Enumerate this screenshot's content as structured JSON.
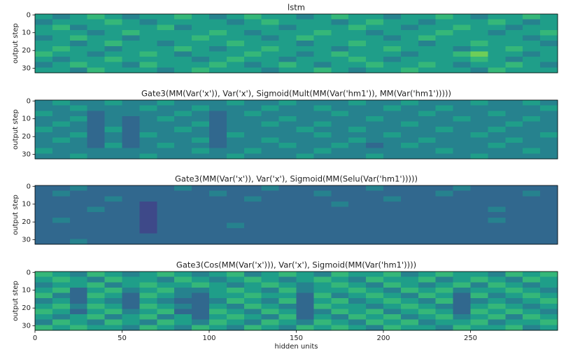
{
  "chart_data": [
    {
      "type": "heatmap",
      "title": "lstm",
      "ylabel": "output step",
      "colormap": "viridis",
      "clim": [
        0,
        9
      ],
      "xlim": [
        0,
        300
      ],
      "ylim": [
        32.5,
        -0.5
      ],
      "yticks": [
        0,
        10,
        20,
        30
      ],
      "values": [
        [
          5,
          4,
          5,
          6,
          5,
          4,
          5,
          5,
          6,
          5,
          4,
          5,
          6,
          5,
          5,
          4,
          5,
          6,
          5,
          5,
          4,
          5,
          5,
          6,
          5,
          4,
          5,
          5,
          6,
          5
        ],
        [
          4,
          5,
          5,
          5,
          6,
          5,
          4,
          5,
          5,
          5,
          5,
          4,
          5,
          6,
          5,
          5,
          5,
          4,
          5,
          6,
          5,
          5,
          4,
          5,
          5,
          5,
          6,
          5,
          4,
          5
        ],
        [
          5,
          6,
          4,
          5,
          5,
          5,
          5,
          6,
          4,
          5,
          5,
          5,
          5,
          5,
          4,
          5,
          5,
          5,
          6,
          5,
          5,
          4,
          5,
          5,
          6,
          5,
          5,
          4,
          5,
          5
        ],
        [
          5,
          5,
          5,
          4,
          5,
          6,
          5,
          5,
          5,
          5,
          6,
          5,
          4,
          5,
          5,
          5,
          6,
          5,
          5,
          4,
          5,
          5,
          5,
          6,
          5,
          5,
          4,
          5,
          5,
          6
        ],
        [
          4,
          5,
          6,
          5,
          5,
          4,
          5,
          5,
          5,
          6,
          5,
          5,
          5,
          4,
          5,
          6,
          5,
          5,
          5,
          5,
          4,
          5,
          6,
          5,
          5,
          5,
          5,
          5,
          4,
          5
        ],
        [
          5,
          5,
          4,
          5,
          6,
          5,
          5,
          4,
          5,
          5,
          5,
          6,
          5,
          5,
          5,
          4,
          5,
          5,
          6,
          5,
          5,
          5,
          4,
          5,
          5,
          6,
          5,
          5,
          5,
          4
        ],
        [
          5,
          6,
          5,
          5,
          4,
          5,
          5,
          5,
          6,
          5,
          4,
          5,
          5,
          6,
          5,
          5,
          5,
          4,
          5,
          5,
          6,
          5,
          5,
          5,
          4,
          5,
          5,
          6,
          5,
          5
        ],
        [
          6,
          5,
          5,
          4,
          5,
          5,
          6,
          5,
          4,
          5,
          5,
          5,
          6,
          5,
          5,
          4,
          5,
          6,
          5,
          5,
          5,
          4,
          5,
          5,
          6,
          7,
          5,
          5,
          4,
          5
        ],
        [
          5,
          4,
          5,
          5,
          6,
          5,
          5,
          5,
          5,
          4,
          5,
          6,
          5,
          5,
          4,
          5,
          5,
          5,
          6,
          5,
          4,
          5,
          5,
          5,
          5,
          6,
          5,
          4,
          5,
          5
        ],
        [
          4,
          5,
          6,
          5,
          5,
          4,
          6,
          5,
          5,
          5,
          6,
          5,
          4,
          5,
          6,
          5,
          4,
          5,
          5,
          6,
          5,
          5,
          6,
          5,
          4,
          5,
          5,
          6,
          5,
          4
        ],
        [
          5,
          5,
          4,
          6,
          5,
          5,
          5,
          4,
          5,
          6,
          5,
          5,
          5,
          4,
          5,
          5,
          6,
          5,
          4,
          5,
          5,
          6,
          5,
          5,
          5,
          4,
          6,
          5,
          5,
          5
        ]
      ]
    },
    {
      "type": "heatmap",
      "title": "Gate3(MM(Var('x')), Var('x'), Sigmoid(Mult(MM(Var('hm1')), MM(Var('hm1')))))",
      "ylabel": "output step",
      "colormap": "viridis",
      "clim": [
        0,
        9
      ],
      "xlim": [
        0,
        300
      ],
      "ylim": [
        32.5,
        -0.5
      ],
      "yticks": [
        0,
        10,
        20,
        30
      ],
      "values": [
        [
          4,
          5,
          4,
          4,
          5,
          4,
          4,
          5,
          4,
          4,
          4,
          5,
          4,
          4,
          5,
          4,
          4,
          4,
          5,
          4,
          4,
          5,
          4,
          4,
          4,
          5,
          4,
          4,
          5,
          4
        ],
        [
          4,
          4,
          5,
          4,
          4,
          4,
          5,
          4,
          4,
          5,
          4,
          4,
          4,
          5,
          4,
          4,
          5,
          4,
          4,
          4,
          5,
          4,
          4,
          5,
          4,
          4,
          4,
          4,
          4,
          5
        ],
        [
          5,
          4,
          4,
          3,
          4,
          4,
          4,
          4,
          5,
          4,
          3,
          4,
          5,
          4,
          4,
          4,
          4,
          5,
          4,
          4,
          4,
          4,
          5,
          4,
          4,
          4,
          5,
          4,
          4,
          4
        ],
        [
          4,
          4,
          5,
          3,
          4,
          3,
          4,
          5,
          4,
          4,
          3,
          4,
          4,
          4,
          5,
          4,
          4,
          4,
          4,
          5,
          4,
          4,
          4,
          4,
          5,
          4,
          4,
          4,
          5,
          4
        ],
        [
          4,
          5,
          4,
          3,
          4,
          3,
          4,
          4,
          4,
          5,
          3,
          4,
          4,
          5,
          4,
          4,
          5,
          4,
          4,
          4,
          4,
          5,
          4,
          4,
          4,
          4,
          4,
          5,
          4,
          4
        ],
        [
          5,
          4,
          4,
          3,
          5,
          3,
          4,
          4,
          5,
          4,
          3,
          4,
          4,
          4,
          4,
          5,
          4,
          4,
          5,
          4,
          4,
          4,
          4,
          5,
          4,
          4,
          5,
          4,
          4,
          4
        ],
        [
          4,
          4,
          5,
          3,
          4,
          3,
          5,
          4,
          4,
          4,
          3,
          5,
          4,
          4,
          4,
          4,
          5,
          4,
          4,
          4,
          5,
          4,
          4,
          4,
          4,
          5,
          4,
          4,
          4,
          5
        ],
        [
          4,
          5,
          4,
          3,
          4,
          3,
          4,
          4,
          4,
          5,
          3,
          4,
          4,
          5,
          4,
          4,
          4,
          4,
          5,
          4,
          4,
          4,
          5,
          4,
          4,
          4,
          4,
          5,
          4,
          4
        ],
        [
          4,
          4,
          4,
          3,
          5,
          3,
          4,
          5,
          4,
          4,
          3,
          4,
          4,
          4,
          5,
          4,
          4,
          5,
          4,
          3,
          4,
          5,
          4,
          4,
          4,
          4,
          5,
          4,
          4,
          4
        ],
        [
          5,
          4,
          4,
          4,
          4,
          4,
          4,
          4,
          4,
          5,
          4,
          4,
          5,
          4,
          4,
          4,
          5,
          4,
          4,
          4,
          4,
          4,
          4,
          5,
          4,
          4,
          4,
          4,
          5,
          4
        ],
        [
          4,
          4,
          5,
          4,
          4,
          4,
          5,
          4,
          4,
          4,
          4,
          5,
          4,
          4,
          4,
          5,
          4,
          4,
          4,
          5,
          4,
          4,
          4,
          4,
          4,
          5,
          4,
          4,
          4,
          4
        ]
      ]
    },
    {
      "type": "heatmap",
      "title": "Gate3(MM(Var('x')), Var('x'), Sigmoid(MM(Selu(Var('hm1')))))",
      "ylabel": "output step",
      "colormap": "viridis",
      "clim": [
        0,
        9
      ],
      "xlim": [
        0,
        300
      ],
      "ylim": [
        32.5,
        -0.5
      ],
      "yticks": [
        0,
        10,
        20,
        30
      ],
      "values": [
        [
          3,
          3,
          4,
          3,
          3,
          3,
          3,
          3,
          4,
          3,
          3,
          3,
          3,
          4,
          3,
          3,
          3,
          3,
          3,
          4,
          3,
          3,
          3,
          3,
          4,
          3,
          3,
          3,
          3,
          3
        ],
        [
          3,
          4,
          3,
          3,
          3,
          3,
          3,
          3,
          3,
          3,
          4,
          3,
          3,
          3,
          3,
          3,
          4,
          3,
          3,
          3,
          3,
          3,
          3,
          4,
          3,
          3,
          3,
          3,
          4,
          3
        ],
        [
          3,
          3,
          3,
          3,
          4,
          3,
          3,
          3,
          3,
          3,
          3,
          3,
          4,
          3,
          3,
          3,
          3,
          3,
          3,
          3,
          4,
          3,
          3,
          3,
          3,
          3,
          3,
          3,
          3,
          3
        ],
        [
          3,
          3,
          3,
          3,
          3,
          3,
          2,
          3,
          3,
          3,
          3,
          3,
          3,
          3,
          3,
          3,
          3,
          4,
          3,
          3,
          3,
          3,
          3,
          3,
          3,
          3,
          3,
          3,
          3,
          3
        ],
        [
          3,
          3,
          3,
          4,
          3,
          3,
          2,
          3,
          3,
          3,
          3,
          3,
          3,
          3,
          3,
          3,
          3,
          3,
          3,
          3,
          3,
          3,
          3,
          3,
          3,
          3,
          4,
          3,
          3,
          3
        ],
        [
          3,
          3,
          3,
          3,
          3,
          3,
          2,
          3,
          3,
          3,
          3,
          3,
          3,
          3,
          3,
          3,
          3,
          3,
          3,
          3,
          3,
          3,
          3,
          3,
          3,
          3,
          3,
          3,
          3,
          3
        ],
        [
          3,
          4,
          3,
          3,
          3,
          3,
          2,
          3,
          3,
          3,
          3,
          3,
          3,
          3,
          3,
          3,
          3,
          3,
          3,
          3,
          3,
          3,
          3,
          3,
          3,
          3,
          4,
          3,
          3,
          3
        ],
        [
          3,
          3,
          3,
          3,
          3,
          3,
          2,
          3,
          3,
          3,
          3,
          4,
          3,
          3,
          3,
          3,
          3,
          3,
          3,
          3,
          3,
          3,
          3,
          3,
          3,
          3,
          3,
          3,
          3,
          3
        ],
        [
          3,
          3,
          3,
          3,
          3,
          3,
          2,
          3,
          3,
          3,
          3,
          3,
          3,
          3,
          3,
          3,
          3,
          3,
          3,
          3,
          3,
          3,
          3,
          3,
          3,
          3,
          3,
          3,
          3,
          3
        ],
        [
          3,
          3,
          3,
          3,
          3,
          3,
          3,
          3,
          3,
          3,
          3,
          3,
          3,
          3,
          3,
          3,
          3,
          3,
          3,
          3,
          3,
          3,
          3,
          3,
          3,
          3,
          3,
          3,
          3,
          3
        ],
        [
          3,
          3,
          4,
          3,
          3,
          3,
          3,
          3,
          3,
          3,
          3,
          3,
          3,
          3,
          3,
          3,
          3,
          3,
          3,
          3,
          3,
          3,
          3,
          3,
          3,
          3,
          3,
          3,
          3,
          3
        ]
      ]
    },
    {
      "type": "heatmap",
      "title": "Gate3(Cos(MM(Var('x'))), Var('x'), Sigmoid(MM(Var('hm1'))))",
      "ylabel": "output step",
      "xlabel": "hidden units",
      "colormap": "viridis",
      "clim": [
        0,
        9
      ],
      "xlim": [
        0,
        300
      ],
      "ylim": [
        32.5,
        -0.5
      ],
      "yticks": [
        0,
        10,
        20,
        30
      ],
      "xticks": [
        0,
        50,
        100,
        150,
        200,
        250
      ],
      "values": [
        [
          6,
          5,
          4,
          6,
          5,
          4,
          5,
          6,
          5,
          4,
          5,
          6,
          4,
          5,
          6,
          5,
          4,
          6,
          5,
          5,
          6,
          4,
          5,
          6,
          5,
          5,
          4,
          6,
          5,
          6
        ],
        [
          5,
          6,
          5,
          4,
          6,
          5,
          5,
          4,
          6,
          5,
          4,
          5,
          6,
          5,
          4,
          5,
          6,
          5,
          4,
          6,
          5,
          5,
          6,
          4,
          5,
          6,
          5,
          4,
          6,
          5
        ],
        [
          4,
          5,
          5,
          6,
          4,
          5,
          6,
          5,
          5,
          6,
          5,
          4,
          5,
          6,
          5,
          4,
          5,
          6,
          5,
          4,
          6,
          5,
          4,
          5,
          6,
          4,
          6,
          5,
          4,
          5
        ],
        [
          5,
          6,
          3,
          5,
          6,
          4,
          5,
          6,
          4,
          4,
          5,
          6,
          5,
          4,
          6,
          4,
          5,
          5,
          6,
          5,
          4,
          6,
          5,
          6,
          4,
          5,
          5,
          6,
          5,
          4
        ],
        [
          6,
          4,
          3,
          6,
          5,
          3,
          6,
          5,
          4,
          3,
          5,
          5,
          6,
          5,
          5,
          3,
          6,
          4,
          5,
          6,
          5,
          4,
          6,
          5,
          3,
          6,
          4,
          5,
          6,
          5
        ],
        [
          4,
          5,
          3,
          5,
          4,
          3,
          5,
          4,
          3,
          3,
          4,
          6,
          5,
          4,
          6,
          3,
          5,
          6,
          4,
          5,
          6,
          5,
          4,
          6,
          3,
          4,
          5,
          4,
          5,
          6
        ],
        [
          5,
          6,
          4,
          6,
          5,
          3,
          6,
          5,
          4,
          3,
          5,
          4,
          6,
          5,
          4,
          3,
          6,
          5,
          5,
          4,
          5,
          6,
          5,
          4,
          3,
          5,
          6,
          5,
          4,
          5
        ],
        [
          6,
          5,
          3,
          5,
          6,
          4,
          5,
          6,
          3,
          3,
          6,
          5,
          4,
          6,
          5,
          3,
          4,
          6,
          5,
          6,
          4,
          5,
          6,
          5,
          3,
          6,
          5,
          6,
          5,
          4
        ],
        [
          5,
          4,
          5,
          6,
          4,
          5,
          6,
          4,
          5,
          3,
          5,
          6,
          5,
          4,
          6,
          3,
          5,
          4,
          6,
          5,
          6,
          4,
          5,
          6,
          4,
          5,
          6,
          4,
          6,
          5
        ],
        [
          4,
          6,
          5,
          4,
          6,
          5,
          4,
          6,
          5,
          4,
          6,
          5,
          4,
          6,
          5,
          4,
          6,
          5,
          4,
          6,
          5,
          6,
          4,
          5,
          5,
          6,
          4,
          5,
          5,
          6
        ],
        [
          6,
          5,
          6,
          5,
          5,
          4,
          6,
          5,
          4,
          6,
          5,
          4,
          6,
          5,
          4,
          6,
          5,
          6,
          5,
          4,
          6,
          5,
          5,
          4,
          6,
          5,
          5,
          6,
          4,
          5
        ]
      ]
    }
  ]
}
